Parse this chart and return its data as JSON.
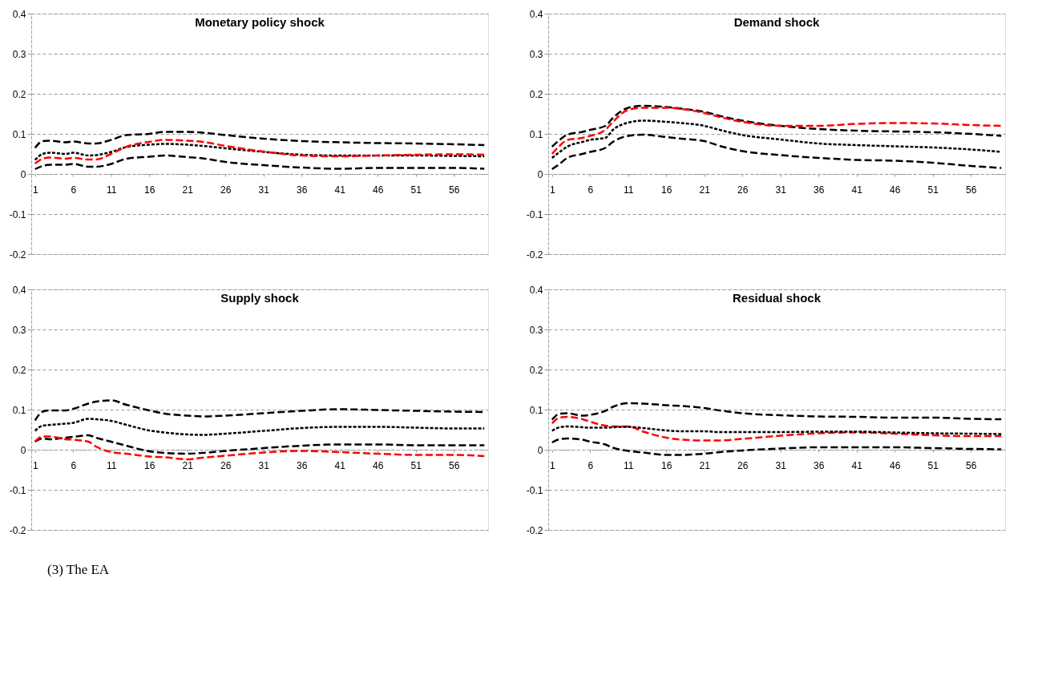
{
  "chart_data": [
    {
      "type": "line",
      "title": "Monetary policy shock",
      "x": [
        1,
        2,
        3,
        5,
        6,
        8,
        9,
        11,
        13,
        16,
        18,
        21,
        23,
        26,
        31,
        36,
        41,
        46,
        51,
        56,
        60
      ],
      "xlim": [
        0.5,
        60.5
      ],
      "xticks": [
        1,
        6,
        11,
        16,
        21,
        26,
        31,
        36,
        41,
        46,
        51,
        56
      ],
      "ylim": [
        -0.2,
        0.4
      ],
      "yticks": [
        -0.2,
        -0.1,
        0,
        0.1,
        0.2,
        0.3,
        0.4
      ],
      "grid": "y",
      "legend": false,
      "series": [
        {
          "color": "#000000",
          "line_style": "dashed",
          "values": [
            0.065,
            0.082,
            0.083,
            0.079,
            0.081,
            0.076,
            0.076,
            0.085,
            0.097,
            0.1,
            0.105,
            0.105,
            0.103,
            0.097,
            0.088,
            0.082,
            0.079,
            0.077,
            0.076,
            0.074,
            0.072
          ]
        },
        {
          "color": "#000000",
          "line_style": "dotted",
          "values": [
            0.035,
            0.05,
            0.053,
            0.05,
            0.053,
            0.046,
            0.047,
            0.055,
            0.067,
            0.073,
            0.075,
            0.073,
            0.07,
            0.064,
            0.055,
            0.048,
            0.046,
            0.046,
            0.046,
            0.045,
            0.044
          ]
        },
        {
          "color": "#ff0000",
          "line_style": "dashed",
          "values": [
            0.026,
            0.038,
            0.041,
            0.038,
            0.04,
            0.036,
            0.036,
            0.05,
            0.068,
            0.08,
            0.085,
            0.083,
            0.08,
            0.07,
            0.056,
            0.046,
            0.044,
            0.046,
            0.048,
            0.049,
            0.048
          ]
        },
        {
          "color": "#000000",
          "line_style": "dashed",
          "values": [
            0.012,
            0.02,
            0.023,
            0.023,
            0.025,
            0.018,
            0.018,
            0.025,
            0.038,
            0.043,
            0.046,
            0.042,
            0.039,
            0.03,
            0.022,
            0.016,
            0.013,
            0.015,
            0.015,
            0.015,
            0.013
          ]
        }
      ]
    },
    {
      "type": "line",
      "title": "Demand shock",
      "x": [
        1,
        2,
        3,
        5,
        6,
        8,
        9,
        11,
        13,
        16,
        18,
        21,
        23,
        26,
        31,
        36,
        41,
        46,
        51,
        56,
        60
      ],
      "xlim": [
        0.5,
        60.5
      ],
      "xticks": [
        1,
        6,
        11,
        16,
        21,
        26,
        31,
        36,
        41,
        46,
        51,
        56
      ],
      "ylim": [
        -0.2,
        0.4
      ],
      "yticks": [
        -0.2,
        -0.1,
        0,
        0.1,
        0.2,
        0.3,
        0.4
      ],
      "grid": "y",
      "legend": false,
      "series": [
        {
          "color": "#000000",
          "line_style": "dashed",
          "values": [
            0.068,
            0.085,
            0.098,
            0.105,
            0.11,
            0.12,
            0.14,
            0.165,
            0.17,
            0.167,
            0.163,
            0.155,
            0.145,
            0.133,
            0.12,
            0.112,
            0.108,
            0.106,
            0.104,
            0.1,
            0.095
          ]
        },
        {
          "color": "#ff0000",
          "line_style": "dashed",
          "values": [
            0.05,
            0.07,
            0.085,
            0.09,
            0.095,
            0.11,
            0.13,
            0.16,
            0.165,
            0.165,
            0.162,
            0.152,
            0.142,
            0.13,
            0.12,
            0.12,
            0.125,
            0.127,
            0.126,
            0.122,
            0.12
          ]
        },
        {
          "color": "#000000",
          "line_style": "dotted",
          "values": [
            0.04,
            0.055,
            0.068,
            0.08,
            0.085,
            0.09,
            0.11,
            0.128,
            0.133,
            0.13,
            0.127,
            0.12,
            0.11,
            0.097,
            0.086,
            0.076,
            0.072,
            0.069,
            0.066,
            0.061,
            0.055
          ]
        },
        {
          "color": "#000000",
          "line_style": "dashed",
          "values": [
            0.012,
            0.025,
            0.04,
            0.05,
            0.055,
            0.065,
            0.08,
            0.095,
            0.098,
            0.092,
            0.088,
            0.082,
            0.07,
            0.057,
            0.047,
            0.04,
            0.035,
            0.033,
            0.028,
            0.02,
            0.015
          ]
        }
      ]
    },
    {
      "type": "line",
      "title": "Supply shock",
      "x": [
        1,
        2,
        3,
        5,
        6,
        8,
        9,
        11,
        13,
        16,
        18,
        21,
        23,
        26,
        31,
        36,
        41,
        46,
        51,
        56,
        60
      ],
      "xlim": [
        0.5,
        60.5
      ],
      "xticks": [
        1,
        6,
        11,
        16,
        21,
        26,
        31,
        36,
        41,
        46,
        51,
        56
      ],
      "ylim": [
        -0.2,
        0.4
      ],
      "yticks": [
        -0.2,
        -0.1,
        0,
        0.1,
        0.2,
        0.3,
        0.4
      ],
      "grid": "y",
      "legend": false,
      "series": [
        {
          "color": "#000000",
          "line_style": "dashed",
          "values": [
            0.073,
            0.095,
            0.098,
            0.098,
            0.102,
            0.115,
            0.12,
            0.123,
            0.112,
            0.098,
            0.09,
            0.085,
            0.083,
            0.085,
            0.091,
            0.097,
            0.101,
            0.099,
            0.097,
            0.095,
            0.094
          ]
        },
        {
          "color": "#000000",
          "line_style": "dotted",
          "values": [
            0.047,
            0.06,
            0.062,
            0.065,
            0.067,
            0.077,
            0.076,
            0.072,
            0.062,
            0.048,
            0.043,
            0.038,
            0.037,
            0.04,
            0.047,
            0.054,
            0.057,
            0.057,
            0.055,
            0.053,
            0.053
          ]
        },
        {
          "color": "#000000",
          "line_style": "dashed",
          "values": [
            0.02,
            0.028,
            0.026,
            0.03,
            0.032,
            0.036,
            0.03,
            0.02,
            0.01,
            -0.004,
            -0.008,
            -0.01,
            -0.008,
            -0.003,
            0.004,
            0.01,
            0.013,
            0.013,
            0.011,
            0.011,
            0.011
          ]
        },
        {
          "color": "#ff0000",
          "line_style": "dashed",
          "values": [
            0.02,
            0.033,
            0.033,
            0.026,
            0.025,
            0.02,
            0.008,
            -0.006,
            -0.01,
            -0.017,
            -0.019,
            -0.024,
            -0.02,
            -0.015,
            -0.007,
            -0.003,
            -0.006,
            -0.01,
            -0.013,
            -0.013,
            -0.016
          ]
        }
      ]
    },
    {
      "type": "line",
      "title": "Residual shock",
      "x": [
        1,
        2,
        3,
        5,
        6,
        8,
        9,
        11,
        13,
        16,
        18,
        21,
        23,
        26,
        31,
        36,
        41,
        46,
        51,
        56,
        60
      ],
      "xlim": [
        0.5,
        60.5
      ],
      "xticks": [
        1,
        6,
        11,
        16,
        21,
        26,
        31,
        36,
        41,
        46,
        51,
        56
      ],
      "ylim": [
        -0.2,
        0.4
      ],
      "yticks": [
        -0.2,
        -0.1,
        0,
        0.1,
        0.2,
        0.3,
        0.4
      ],
      "grid": "y",
      "legend": false,
      "annotations": [
        "(3)  The EA"
      ],
      "series": [
        {
          "color": "#000000",
          "line_style": "dashed",
          "values": [
            0.075,
            0.09,
            0.091,
            0.085,
            0.087,
            0.097,
            0.107,
            0.116,
            0.115,
            0.111,
            0.109,
            0.104,
            0.098,
            0.091,
            0.086,
            0.083,
            0.082,
            0.08,
            0.08,
            0.077,
            0.076
          ]
        },
        {
          "color": "#ff0000",
          "line_style": "dashed",
          "values": [
            0.066,
            0.08,
            0.082,
            0.076,
            0.07,
            0.06,
            0.058,
            0.058,
            0.045,
            0.03,
            0.025,
            0.023,
            0.023,
            0.027,
            0.035,
            0.041,
            0.043,
            0.04,
            0.036,
            0.034,
            0.034
          ]
        },
        {
          "color": "#000000",
          "line_style": "dotted",
          "values": [
            0.047,
            0.056,
            0.058,
            0.056,
            0.055,
            0.055,
            0.056,
            0.057,
            0.054,
            0.048,
            0.046,
            0.046,
            0.044,
            0.044,
            0.044,
            0.045,
            0.045,
            0.043,
            0.041,
            0.04,
            0.039
          ]
        },
        {
          "color": "#000000",
          "line_style": "dashed",
          "values": [
            0.018,
            0.026,
            0.028,
            0.025,
            0.02,
            0.013,
            0.005,
            -0.003,
            -0.007,
            -0.013,
            -0.013,
            -0.01,
            -0.006,
            -0.002,
            0.003,
            0.006,
            0.006,
            0.006,
            0.004,
            0.002,
            0.001
          ]
        }
      ]
    }
  ]
}
